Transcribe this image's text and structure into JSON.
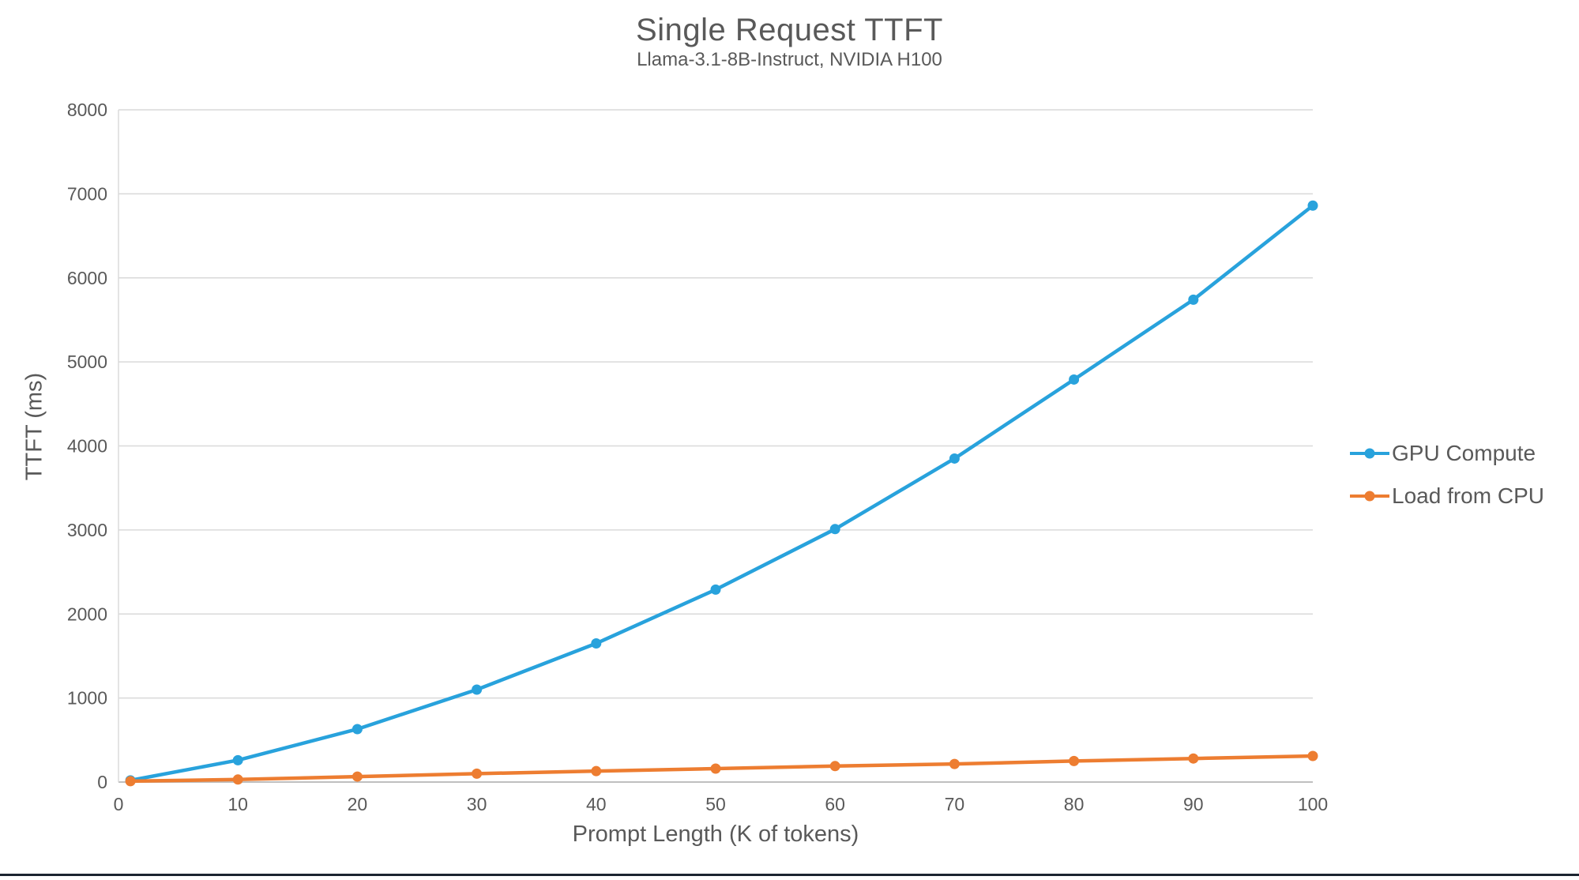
{
  "chart_data": {
    "type": "line",
    "title": "Single Request TTFT",
    "subtitle": "Llama-3.1-8B-Instruct, NVIDIA H100",
    "xlabel": "Prompt Length (K of tokens)",
    "ylabel": "TTFT (ms)",
    "x": [
      1,
      10,
      20,
      30,
      40,
      50,
      60,
      70,
      80,
      90,
      100
    ],
    "series": [
      {
        "name": "GPU Compute",
        "color": "#28A2DC",
        "values": [
          20,
          260,
          630,
          1100,
          1650,
          2290,
          3010,
          3850,
          4790,
          5740,
          6860
        ]
      },
      {
        "name": "Load from CPU",
        "color": "#ED7D31",
        "values": [
          10,
          30,
          65,
          100,
          130,
          160,
          190,
          215,
          250,
          280,
          310
        ]
      }
    ],
    "xlim": [
      0,
      100
    ],
    "ylim": [
      0,
      8000
    ],
    "x_ticks": [
      0,
      10,
      20,
      30,
      40,
      50,
      60,
      70,
      80,
      90,
      100
    ],
    "y_ticks": [
      0,
      1000,
      2000,
      3000,
      4000,
      5000,
      6000,
      7000,
      8000
    ],
    "grid": "horizontal",
    "legend_position": "right"
  },
  "style": {
    "text_color": "#595959",
    "gridline_color": "#D9D9D9",
    "axis_line_color": "#BFBFBF",
    "background": "#FFFFFF",
    "bottom_edge_color": "#1C2430"
  }
}
